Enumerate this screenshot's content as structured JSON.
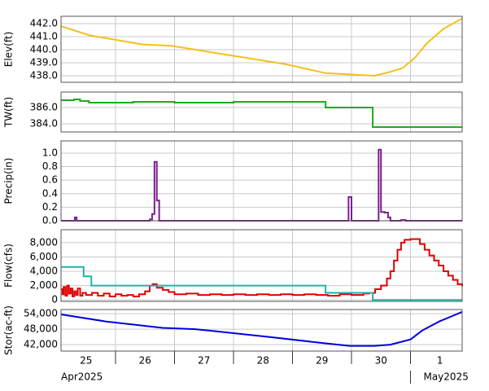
{
  "chart_data": [
    {
      "type": "line",
      "ylabel": "Elev(ft)",
      "xlim": [
        0.076,
        6.876
      ],
      "ylim": [
        437.5,
        442.56
      ],
      "yticks": [
        {
          "value": 438,
          "label": "438.0"
        },
        {
          "value": 439,
          "label": "439.0"
        },
        {
          "value": 440,
          "label": "440.0"
        },
        {
          "value": 441,
          "label": "441.0"
        },
        {
          "value": 442,
          "label": "442.0"
        }
      ],
      "series": [
        {
          "color": "#f2c01e",
          "step": false,
          "x": [
            0.08,
            0.56,
            1.46,
            1.94,
            3.04,
            3.87,
            4.56,
            4.97,
            5.39,
            5.66,
            5.87,
            6.08,
            6.28,
            6.56,
            6.876
          ],
          "values": [
            441.8,
            441.1,
            440.4,
            440.3,
            439.5,
            438.9,
            438.2,
            438.1,
            438.0,
            438.3,
            438.6,
            439.4,
            440.5,
            441.6,
            442.4
          ]
        }
      ]
    },
    {
      "type": "line",
      "ylabel": "TW(ft)",
      "xlim": [
        0.076,
        6.876
      ],
      "ylim": [
        383,
        387.9
      ],
      "yticks": [
        {
          "value": 384,
          "label": "384.0"
        },
        {
          "value": 386,
          "label": "386.0"
        }
      ],
      "series": [
        {
          "color": "#1faa1f",
          "step": true,
          "x": [
            0.08,
            0.3,
            0.4,
            0.55,
            1.3,
            2.0,
            3.0,
            4.56,
            5.36,
            6.876
          ],
          "values": [
            386.9,
            387.0,
            386.8,
            386.6,
            386.7,
            386.6,
            386.7,
            386.0,
            383.6,
            383.6
          ]
        }
      ]
    },
    {
      "type": "line",
      "ylabel": "Precip(in)",
      "xlim": [
        0.076,
        6.876
      ],
      "ylim": [
        0,
        1.18
      ],
      "yticks": [
        {
          "value": 0,
          "label": "0.0"
        },
        0.2,
        0.4,
        0.6,
        0.8,
        {
          "value": 1,
          "label": "1.0"
        }
      ],
      "series": [
        {
          "color": "#7b1f8f",
          "step": true,
          "x": [
            0.08,
            0.28,
            0.31,
            0.34,
            1.58,
            1.62,
            1.66,
            1.7,
            1.74,
            4.95,
            5.0,
            5.46,
            5.5,
            5.56,
            5.62,
            5.66,
            5.84,
            5.92,
            6.876
          ],
          "values": [
            0,
            0,
            0.05,
            0,
            0.02,
            0.1,
            0.87,
            0.3,
            0,
            0.35,
            0,
            1.05,
            0.13,
            0.12,
            0.05,
            0,
            0.01,
            0,
            0
          ]
        }
      ]
    },
    {
      "type": "line",
      "ylabel": "Flow(cfs)",
      "xlim": [
        0.076,
        6.876
      ],
      "ylim": [
        -200,
        9800
      ],
      "yticks": [
        0,
        {
          "value": 2000,
          "label": "2,000"
        },
        {
          "value": 4000,
          "label": "4,000"
        },
        {
          "value": 6000,
          "label": "6,000"
        },
        {
          "value": 8000,
          "label": "8,000"
        }
      ],
      "series": [
        {
          "color": "#e00000",
          "step": true,
          "x": [
            0.08,
            0.1,
            0.12,
            0.15,
            0.18,
            0.21,
            0.24,
            0.27,
            0.3,
            0.33,
            0.36,
            0.4,
            0.44,
            0.5,
            0.6,
            0.7,
            0.8,
            0.9,
            1.0,
            1.1,
            1.2,
            1.3,
            1.4,
            1.5,
            1.58,
            1.63,
            1.7,
            1.8,
            1.9,
            2.0,
            2.2,
            2.4,
            2.6,
            2.8,
            3.0,
            3.2,
            3.4,
            3.6,
            3.8,
            4.0,
            4.2,
            4.4,
            4.6,
            4.8,
            5.0,
            5.2,
            5.3,
            5.4,
            5.5,
            5.6,
            5.66,
            5.72,
            5.78,
            5.84,
            5.9,
            6.0,
            6.1,
            6.16,
            6.24,
            6.32,
            6.4,
            6.48,
            6.56,
            6.64,
            6.72,
            6.8,
            6.876
          ],
          "values": [
            1500,
            800,
            1800,
            600,
            2000,
            900,
            1600,
            500,
            1200,
            700,
            1600,
            600,
            1000,
            700,
            1000,
            600,
            900,
            500,
            800,
            600,
            700,
            500,
            800,
            1200,
            2000,
            2200,
            1700,
            1400,
            1100,
            800,
            900,
            700,
            800,
            700,
            800,
            700,
            800,
            700,
            800,
            700,
            800,
            700,
            600,
            800,
            700,
            900,
            1000,
            1500,
            2000,
            3000,
            4000,
            5500,
            7000,
            8000,
            8400,
            8500,
            8500,
            7800,
            7000,
            6200,
            5500,
            4800,
            4000,
            3400,
            2800,
            2200,
            1900
          ]
        },
        {
          "color": "#20b2aa",
          "step": true,
          "x": [
            0.08,
            0.46,
            0.59,
            4.56,
            5.36,
            6.876
          ],
          "values": [
            4600,
            3300,
            2000,
            1000,
            0,
            0
          ]
        }
      ]
    },
    {
      "type": "line",
      "ylabel": "Stor(ac-ft)",
      "xlim": [
        0.076,
        6.876
      ],
      "ylim": [
        39500,
        55600
      ],
      "yticks": [
        {
          "value": 42000,
          "label": "42,000"
        },
        {
          "value": 48000,
          "label": "48,000"
        },
        {
          "value": 54000,
          "label": "54,000"
        }
      ],
      "xticks": [
        {
          "value": 0.5,
          "label": "25"
        },
        {
          "value": 1.5,
          "label": "26"
        },
        {
          "value": 2.5,
          "label": "27"
        },
        {
          "value": 3.5,
          "label": "28"
        },
        {
          "value": 4.5,
          "label": "29"
        },
        {
          "value": 5.5,
          "label": "30"
        },
        {
          "value": 6.5,
          "label": "1"
        }
      ],
      "month_labels": [
        "Apr2025",
        "May2025"
      ],
      "series": [
        {
          "color": "#0000dd",
          "step": false,
          "x": [
            0.08,
            0.83,
            1.8,
            2.35,
            3.6,
            4.56,
            4.97,
            5.39,
            5.66,
            6.0,
            6.2,
            6.49,
            6.7,
            6.876
          ],
          "values": [
            53700,
            51000,
            48500,
            48000,
            45000,
            42500,
            41500,
            41500,
            42000,
            44000,
            47500,
            51000,
            53000,
            54700
          ]
        }
      ]
    }
  ]
}
